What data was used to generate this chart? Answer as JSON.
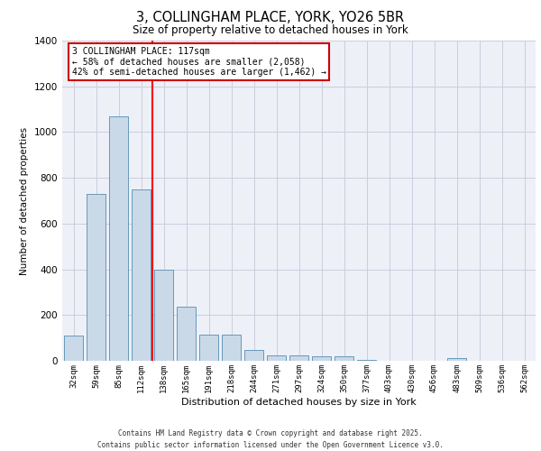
{
  "title_line1": "3, COLLINGHAM PLACE, YORK, YO26 5BR",
  "title_line2": "Size of property relative to detached houses in York",
  "xlabel": "Distribution of detached houses by size in York",
  "ylabel": "Number of detached properties",
  "categories": [
    "32sqm",
    "59sqm",
    "85sqm",
    "112sqm",
    "138sqm",
    "165sqm",
    "191sqm",
    "218sqm",
    "244sqm",
    "271sqm",
    "297sqm",
    "324sqm",
    "350sqm",
    "377sqm",
    "403sqm",
    "430sqm",
    "456sqm",
    "483sqm",
    "509sqm",
    "536sqm",
    "562sqm"
  ],
  "values": [
    110,
    730,
    1070,
    750,
    400,
    235,
    115,
    115,
    48,
    25,
    25,
    20,
    18,
    5,
    0,
    0,
    0,
    10,
    0,
    0,
    0
  ],
  "bar_color": "#c9d9e8",
  "bar_edge_color": "#6699bb",
  "grid_color": "#ccccdd",
  "bg_color": "#eef0f8",
  "red_line_index": 3.5,
  "annotation_text": "3 COLLINGHAM PLACE: 117sqm\n← 58% of detached houses are smaller (2,058)\n42% of semi-detached houses are larger (1,462) →",
  "annotation_box_color": "#ffffff",
  "annotation_box_edge": "#cc0000",
  "footer_line1": "Contains HM Land Registry data © Crown copyright and database right 2025.",
  "footer_line2": "Contains public sector information licensed under the Open Government Licence v3.0.",
  "ylim": [
    0,
    1400
  ],
  "yticks": [
    0,
    200,
    400,
    600,
    800,
    1000,
    1200,
    1400
  ]
}
